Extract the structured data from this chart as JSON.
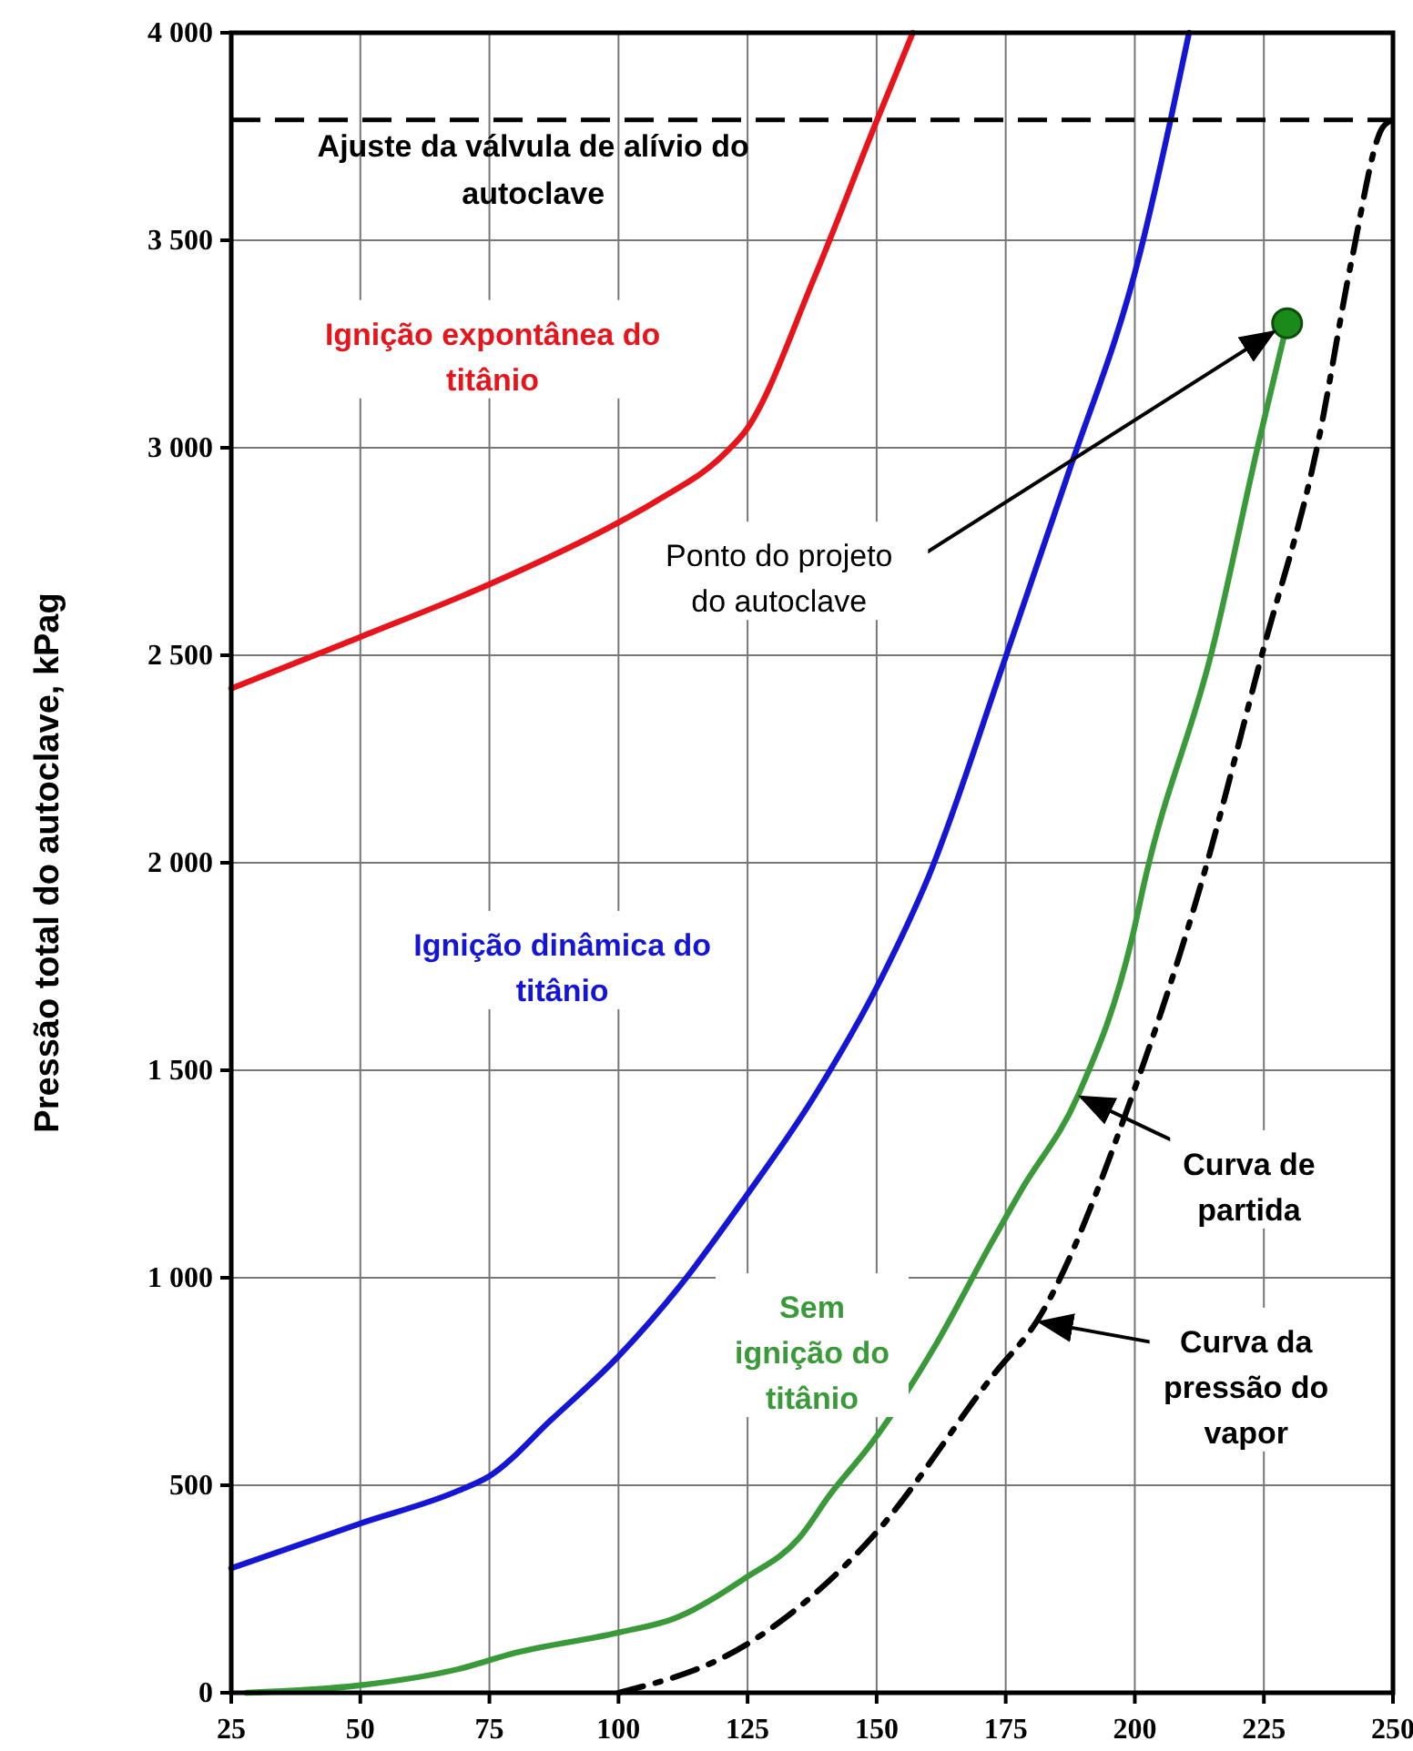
{
  "chart_data": {
    "type": "line",
    "ylabel": "Pressão total do autoclave, kPag",
    "xlim": [
      25,
      250
    ],
    "xticks": [
      25,
      50,
      75,
      100,
      125,
      150,
      175,
      200,
      225,
      250
    ],
    "ylim": [
      0,
      4000
    ],
    "yticks": [
      0,
      500,
      {
        "value": 1000,
        "label": "1 000"
      },
      {
        "value": 1500,
        "label": "1 500"
      },
      {
        "value": 2000,
        "label": "2 000"
      },
      {
        "value": 2500,
        "label": "2 500"
      },
      {
        "value": 3000,
        "label": "3 000"
      },
      {
        "value": 3500,
        "label": "3 500"
      },
      {
        "value": 4000,
        "label": "4 000"
      }
    ],
    "grid": true,
    "marker": "none",
    "series": [
      {
        "color": "#e8141b",
        "line_style": "solid",
        "x": [
          25,
          50,
          75,
          100,
          107.5,
          121,
          124.5,
          138,
          149.5,
          157
        ],
        "values": [
          2420,
          2544,
          2671,
          2820,
          2873,
          2991,
          3039,
          3412,
          3772,
          4000
        ]
      },
      {
        "color": "#1515d6",
        "line_style": "solid",
        "x": [
          25,
          50,
          69,
          75,
          87,
          100,
          112,
          124.5,
          138,
          151,
          160,
          175,
          187,
          201,
          207,
          210.5
        ],
        "values": [
          300,
          408,
          487,
          522,
          658,
          811,
          982,
          1193,
          1439,
          1724,
          1965,
          2496,
          2934,
          3469,
          3794,
          4000
        ]
      },
      {
        "color": "#3a9a3a",
        "line_style": "solid",
        "x": [
          28,
          50,
          69,
          80,
          100,
          111,
          124.5,
          135,
          141,
          149,
          161,
          172,
          178,
          189,
          199.5,
          202,
          215,
          224,
          229.5
        ],
        "values": [
          0,
          18,
          57,
          96,
          145,
          180,
          276,
          373,
          478,
          601,
          829,
          1079,
          1211,
          1439,
          1820,
          1961,
          2513,
          3013,
          3300
        ]
      },
      {
        "color": "#000000",
        "line_style": "dashed",
        "x": [
          100,
          124.5,
          149,
          173,
          181,
          199.5,
          213,
          224.5,
          235.5,
          242,
          248,
          250
        ],
        "values": [
          0,
          114,
          373,
          772,
          895,
          1439,
          1956,
          2496,
          3013,
          3452,
          3772,
          3790
        ]
      },
      {
        "type": "scatter",
        "marker": "circle",
        "color": "#1a8a1a",
        "x": [
          229.5
        ],
        "values": [
          3300
        ]
      }
    ],
    "ref_lines": [
      {
        "axis": "y",
        "value": 3790,
        "label": "Ajuste da válvula de alívio do autoclave",
        "color": "#000000",
        "line_style": "dashed"
      }
    ],
    "annotations": [
      "Ignição expontânea do titânio",
      "Ignição dinâmica do titânio",
      "Sem ignição do titânio",
      {
        "text": "Ponto do projeto do autoclave",
        "x": 229.5,
        "y": 3300
      },
      {
        "text": "Curva de partida",
        "x": 189,
        "y": 1439
      },
      {
        "text": "Curva da pressão do vapor",
        "x": 181,
        "y": 895
      }
    ]
  }
}
